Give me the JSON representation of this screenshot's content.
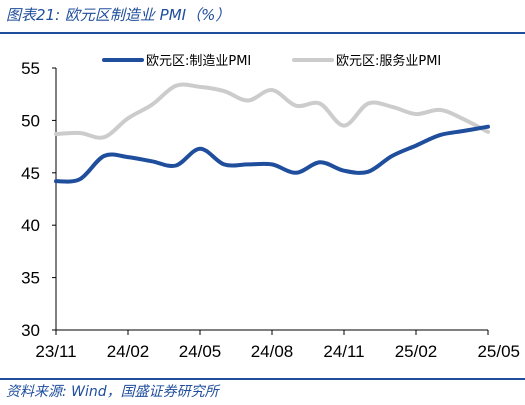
{
  "figure": {
    "title": "图表21:  欧元区制造业 PMI（%）",
    "source": "资料来源:  Wind，国盛证券研究所"
  },
  "chart_data": {
    "type": "line",
    "x_tick_labels": [
      "23/11",
      "24/02",
      "24/05",
      "24/08",
      "24/11",
      "25/02",
      "25/05"
    ],
    "x": [
      "2023-11",
      "2023-12",
      "2024-01",
      "2024-02",
      "2024-03",
      "2024-04",
      "2024-05",
      "2024-06",
      "2024-07",
      "2024-08",
      "2024-09",
      "2024-10",
      "2024-11",
      "2024-12",
      "2025-01",
      "2025-02",
      "2025-03",
      "2025-04",
      "2025-05"
    ],
    "ylim": [
      30,
      55
    ],
    "yticks": [
      30,
      35,
      40,
      45,
      50,
      55
    ],
    "legend_position": "top-right",
    "grid": false,
    "series": [
      {
        "name": "欧元区:制造业PMI",
        "color": "#1f4e9c",
        "values": [
          44.2,
          44.4,
          46.6,
          46.5,
          46.1,
          45.7,
          47.3,
          45.8,
          45.8,
          45.8,
          45.0,
          46.0,
          45.2,
          45.1,
          46.6,
          47.6,
          48.6,
          49.0,
          49.4
        ]
      },
      {
        "name": "欧元区:服务业PMI",
        "color": "#cccccc",
        "values": [
          48.7,
          48.8,
          48.4,
          50.2,
          51.5,
          53.3,
          53.2,
          52.8,
          51.9,
          52.9,
          51.4,
          51.6,
          49.5,
          51.6,
          51.3,
          50.6,
          51.0,
          50.1,
          48.9
        ]
      }
    ]
  }
}
